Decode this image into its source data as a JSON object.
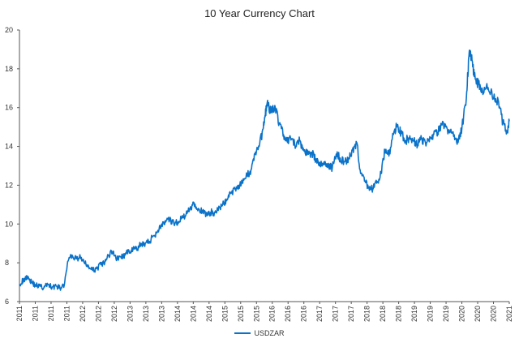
{
  "chart_data": {
    "type": "line",
    "title": "10 Year Currency Chart",
    "xlabel": "",
    "ylabel": "",
    "ylim": [
      6,
      20
    ],
    "y_ticks": [
      "6",
      "8",
      "10",
      "12",
      "14",
      "16",
      "18",
      "20"
    ],
    "x_tick_labels": [
      "2011",
      "2011",
      "2011",
      "2011",
      "2012",
      "2012",
      "2012",
      "2013",
      "2013",
      "2013",
      "2014",
      "2014",
      "2014",
      "2015",
      "2015",
      "2015",
      "2016",
      "2016",
      "2016",
      "2017",
      "2017",
      "2017",
      "2018",
      "2018",
      "2018",
      "2019",
      "2019",
      "2019",
      "2020",
      "2020",
      "2020",
      "2021"
    ],
    "x_start": 2011.0,
    "x_end": 2021.05,
    "grid": false,
    "legend_position": "bottom",
    "series": [
      {
        "name": "USDZAR",
        "color": "#0a72c8",
        "x": [
          2011.0,
          2011.08,
          2011.17,
          2011.25,
          2011.33,
          2011.42,
          2011.5,
          2011.58,
          2011.67,
          2011.75,
          2011.83,
          2011.92,
          2012.0,
          2012.08,
          2012.17,
          2012.25,
          2012.33,
          2012.42,
          2012.5,
          2012.58,
          2012.67,
          2012.75,
          2012.83,
          2012.92,
          2013.0,
          2013.08,
          2013.17,
          2013.25,
          2013.33,
          2013.42,
          2013.5,
          2013.58,
          2013.67,
          2013.75,
          2013.83,
          2013.92,
          2014.0,
          2014.08,
          2014.17,
          2014.25,
          2014.33,
          2014.42,
          2014.5,
          2014.58,
          2014.67,
          2014.75,
          2014.83,
          2014.92,
          2015.0,
          2015.08,
          2015.17,
          2015.25,
          2015.33,
          2015.42,
          2015.5,
          2015.58,
          2015.67,
          2015.75,
          2015.83,
          2015.92,
          2016.0,
          2016.04,
          2016.08,
          2016.17,
          2016.25,
          2016.33,
          2016.42,
          2016.5,
          2016.58,
          2016.67,
          2016.75,
          2016.83,
          2016.92,
          2017.0,
          2017.08,
          2017.17,
          2017.25,
          2017.33,
          2017.42,
          2017.5,
          2017.58,
          2017.67,
          2017.75,
          2017.83,
          2017.92,
          2018.0,
          2018.08,
          2018.17,
          2018.25,
          2018.33,
          2018.42,
          2018.5,
          2018.58,
          2018.67,
          2018.75,
          2018.83,
          2018.92,
          2019.0,
          2019.08,
          2019.17,
          2019.25,
          2019.33,
          2019.42,
          2019.5,
          2019.58,
          2019.67,
          2019.75,
          2019.83,
          2019.92,
          2020.0,
          2020.08,
          2020.17,
          2020.22,
          2020.25,
          2020.29,
          2020.33,
          2020.42,
          2020.5,
          2020.58,
          2020.67,
          2020.75,
          2020.83,
          2020.92,
          2021.0,
          2021.05
        ],
        "y": [
          6.9,
          7.1,
          7.3,
          7.0,
          6.85,
          6.8,
          6.7,
          6.9,
          6.75,
          6.8,
          6.7,
          6.85,
          8.1,
          8.4,
          8.2,
          8.3,
          8.0,
          7.8,
          7.6,
          7.7,
          7.9,
          8.0,
          8.4,
          8.6,
          8.2,
          8.3,
          8.4,
          8.6,
          8.7,
          8.7,
          9.0,
          9.0,
          9.1,
          9.4,
          9.6,
          10.0,
          10.1,
          10.2,
          10.0,
          10.1,
          10.3,
          10.5,
          10.8,
          11.1,
          10.8,
          10.6,
          10.5,
          10.6,
          10.6,
          10.7,
          11.0,
          11.2,
          11.6,
          11.8,
          12.0,
          12.1,
          12.5,
          12.8,
          13.6,
          14.0,
          14.9,
          15.6,
          16.2,
          15.8,
          16.0,
          15.2,
          14.6,
          14.2,
          14.4,
          14.0,
          14.3,
          13.8,
          13.6,
          13.7,
          13.3,
          13.0,
          13.2,
          13.0,
          12.9,
          13.6,
          13.4,
          13.2,
          13.4,
          13.8,
          14.2,
          12.6,
          12.2,
          11.9,
          11.8,
          12.1,
          12.6,
          13.8,
          13.5,
          14.6,
          15.1,
          14.7,
          14.3,
          14.4,
          14.3,
          14.1,
          14.4,
          14.2,
          14.5,
          14.6,
          14.7,
          15.1,
          15.0,
          14.7,
          14.6,
          14.2,
          15.0,
          16.5,
          18.6,
          18.9,
          18.4,
          17.6,
          17.2,
          16.9,
          17.1,
          16.8,
          16.4,
          16.3,
          15.2,
          14.7,
          15.3
        ]
      }
    ]
  }
}
